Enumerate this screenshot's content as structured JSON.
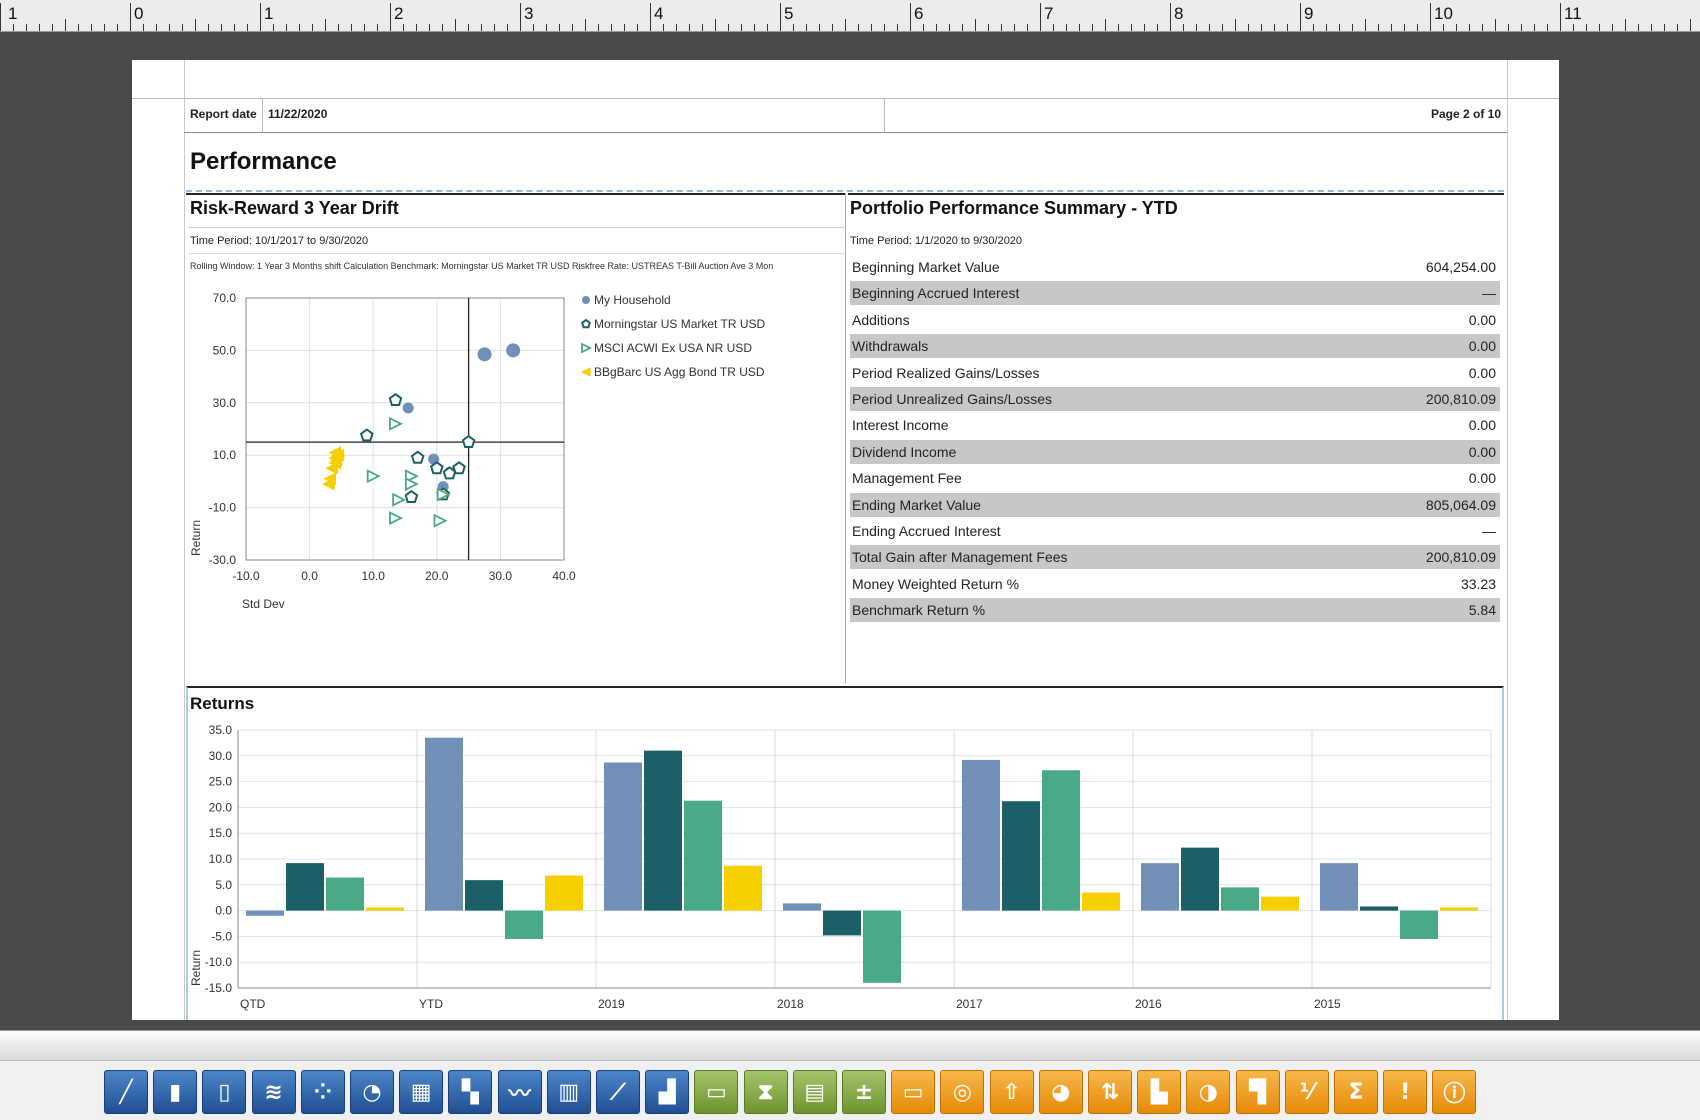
{
  "ruler": {
    "marks": [
      "1",
      "0",
      "1",
      "2",
      "3",
      "4",
      "5",
      "6",
      "7",
      "8",
      "9",
      "10",
      "11"
    ]
  },
  "header": {
    "report_date_label": "Report date",
    "report_date_value": "11/22/2020",
    "page_label": "Page 2 of 10"
  },
  "section_title": "Performance",
  "risk_reward": {
    "title": "Risk-Reward 3 Year Drift",
    "time_period": "Time Period: 10/1/2017 to 9/30/2020",
    "settings": "Rolling Window: 1 Year 3 Months shift    Calculation Benchmark: Morningstar US Market TR USD    Riskfree Rate: USTREAS T-Bill Auction Ave 3 Mon",
    "xlabel": "Std Dev",
    "ylabel": "Return"
  },
  "summary": {
    "title": "Portfolio Performance Summary - YTD",
    "time_period": "Time Period: 1/1/2020 to 9/30/2020",
    "rows": [
      {
        "label": "Beginning Market Value",
        "value": "604,254.00"
      },
      {
        "label": "Beginning Accrued Interest",
        "value": "—"
      },
      {
        "label": "Additions",
        "value": "0.00"
      },
      {
        "label": "Withdrawals",
        "value": "0.00"
      },
      {
        "label": "Period Realized Gains/Losses",
        "value": "0.00"
      },
      {
        "label": "Period Unrealized Gains/Losses",
        "value": "200,810.09"
      },
      {
        "label": "Interest Income",
        "value": "0.00"
      },
      {
        "label": "Dividend Income",
        "value": "0.00"
      },
      {
        "label": "Management Fee",
        "value": "0.00"
      },
      {
        "label": "Ending Market Value",
        "value": "805,064.09"
      },
      {
        "label": "Ending Accrued Interest",
        "value": "—"
      },
      {
        "label": "Total Gain after Management Fees",
        "value": "200,810.09"
      },
      {
        "label": "Money Weighted Return %",
        "value": "33.23"
      },
      {
        "label": "Benchmark Return %",
        "value": "5.84"
      }
    ]
  },
  "returns_title": "Returns",
  "colors": {
    "household": "#7090b8",
    "morningstar": "#1c5f66",
    "msci": "#49a987",
    "bbgbarc": "#f5cf00"
  },
  "chart_data": [
    {
      "type": "scatter",
      "title": "Risk-Reward 3 Year Drift",
      "xlabel": "Std Dev",
      "ylabel": "Return",
      "xlim": [
        -10,
        40
      ],
      "ylim": [
        -30,
        70
      ],
      "xticks": [
        "-10.0",
        "0.0",
        "10.0",
        "20.0",
        "30.0",
        "40.0"
      ],
      "yticks": [
        "70.0",
        "50.0",
        "30.0",
        "10.0",
        "-10.0",
        "-30.0"
      ],
      "crosshair": {
        "x": 25,
        "y": 15
      },
      "series": [
        {
          "name": "My Household",
          "marker": "circle",
          "color": "#7090b8",
          "points": [
            [
              27.5,
              48.5
            ],
            [
              32,
              50
            ],
            [
              15.5,
              28
            ],
            [
              19.5,
              8.5
            ],
            [
              22,
              3.5
            ],
            [
              21,
              -2
            ]
          ]
        },
        {
          "name": "Morningstar US Market TR USD",
          "marker": "pentagon",
          "color": "#1c5f66",
          "points": [
            [
              13.5,
              31
            ],
            [
              9,
              17.5
            ],
            [
              17,
              9
            ],
            [
              20,
              5
            ],
            [
              22,
              3
            ],
            [
              23.5,
              5
            ],
            [
              21,
              -5
            ],
            [
              16,
              -6
            ],
            [
              25,
              15
            ]
          ]
        },
        {
          "name": "MSCI ACWI Ex USA NR USD",
          "marker": "triangle-right",
          "color": "#49a987",
          "points": [
            [
              13.5,
              22
            ],
            [
              10,
              2
            ],
            [
              16,
              2
            ],
            [
              16,
              -1
            ],
            [
              14,
              -7
            ],
            [
              21,
              -5
            ],
            [
              13.5,
              -14
            ],
            [
              20.5,
              -15
            ]
          ]
        },
        {
          "name": "BBgBarc US Agg Bond TR USD",
          "marker": "triangle-left",
          "color": "#f5cf00",
          "points": [
            [
              4,
              11
            ],
            [
              4,
              9
            ],
            [
              4,
              7
            ],
            [
              3.5,
              5
            ],
            [
              3.2,
              1
            ],
            [
              3,
              -1
            ],
            [
              4.5,
              10
            ],
            [
              4.2,
              8
            ]
          ]
        }
      ]
    },
    {
      "type": "bar",
      "title": "Returns",
      "ylabel": "Return",
      "ylim": [
        -15,
        35
      ],
      "yticks": [
        "35.0",
        "30.0",
        "25.0",
        "20.0",
        "15.0",
        "10.0",
        "5.0",
        "0.0",
        "-5.0",
        "-10.0",
        "-15.0"
      ],
      "categories": [
        "QTD",
        "YTD",
        "2019",
        "2018",
        "2017",
        "2016",
        "2015"
      ],
      "series": [
        {
          "name": "My Household",
          "values": [
            -1.0,
            33.5,
            28.7,
            1.4,
            29.2,
            9.2,
            9.2
          ]
        },
        {
          "name": "Morningstar US Market TR USD",
          "values": [
            9.2,
            5.9,
            31.0,
            -4.8,
            21.2,
            12.2,
            0.8
          ]
        },
        {
          "name": "MSCI ACWI Ex USA NR USD",
          "values": [
            6.4,
            -5.5,
            21.3,
            -14.0,
            27.2,
            4.5,
            -5.5
          ]
        },
        {
          "name": "BBgBarc US Agg Bond TR USD",
          "values": [
            0.6,
            6.8,
            8.7,
            0.0,
            3.5,
            2.7,
            0.6
          ]
        }
      ]
    }
  ],
  "toolbar": {
    "buttons": [
      {
        "name": "line-chart-icon",
        "color": "blue"
      },
      {
        "name": "bar-chart-icon",
        "color": "blue"
      },
      {
        "name": "column-chart-icon",
        "color": "blue"
      },
      {
        "name": "stacked-area-icon",
        "color": "blue"
      },
      {
        "name": "scatter-icon",
        "color": "blue"
      },
      {
        "name": "pie-chart-icon",
        "color": "blue"
      },
      {
        "name": "table-icon",
        "color": "blue"
      },
      {
        "name": "heatmap-icon",
        "color": "blue"
      },
      {
        "name": "multi-line-icon",
        "color": "blue"
      },
      {
        "name": "histogram-icon",
        "color": "blue"
      },
      {
        "name": "drift-line-icon",
        "color": "blue"
      },
      {
        "name": "area-chart-icon",
        "color": "blue"
      },
      {
        "name": "folder-open-icon",
        "color": "green"
      },
      {
        "name": "hourglass-icon",
        "color": "green"
      },
      {
        "name": "document-icon",
        "color": "green"
      },
      {
        "name": "plus-minus-icon",
        "color": "green"
      },
      {
        "name": "folder-icon",
        "color": "orange"
      },
      {
        "name": "target-icon",
        "color": "orange"
      },
      {
        "name": "upload-icon",
        "color": "orange"
      },
      {
        "name": "pie-orange-icon",
        "color": "orange"
      },
      {
        "name": "arrow-down-up-icon",
        "color": "orange"
      },
      {
        "name": "factory-icon",
        "color": "orange"
      },
      {
        "name": "pie-split-icon",
        "color": "orange"
      },
      {
        "name": "steps-icon",
        "color": "orange"
      },
      {
        "name": "ratio-icon",
        "color": "orange"
      },
      {
        "name": "sigma-icon",
        "color": "orange"
      },
      {
        "name": "alert-icon",
        "color": "orange"
      },
      {
        "name": "alert-circle-icon",
        "color": "orange"
      }
    ]
  }
}
